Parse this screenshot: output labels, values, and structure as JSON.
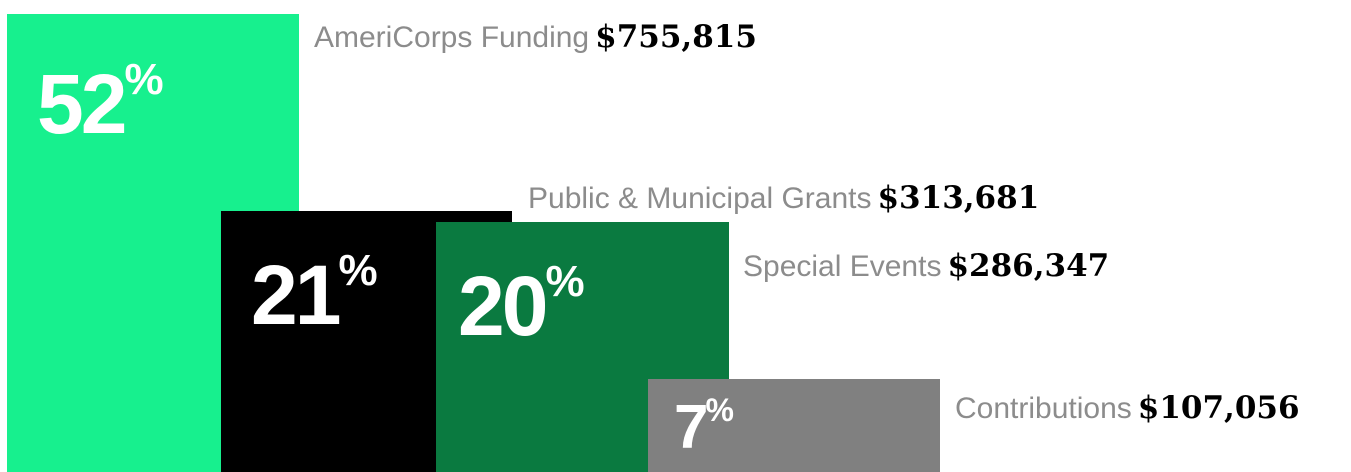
{
  "chart_data": {
    "type": "bar",
    "categories": [
      "AmeriCorps Funding",
      "Public & Municipal Grants",
      "Special Events",
      "Contributions"
    ],
    "values": [
      52,
      21,
      20,
      7
    ],
    "percent_labels": [
      "52",
      "21",
      "20",
      "7"
    ],
    "percent_sign": "%",
    "amounts": [
      "$755,815",
      "$313,681",
      "$286,347",
      "$107,056"
    ],
    "colors": [
      "#17f08e",
      "#000000",
      "#0a7a40",
      "#808080"
    ],
    "title": "",
    "xlabel": "",
    "ylabel": "",
    "grid": false
  }
}
